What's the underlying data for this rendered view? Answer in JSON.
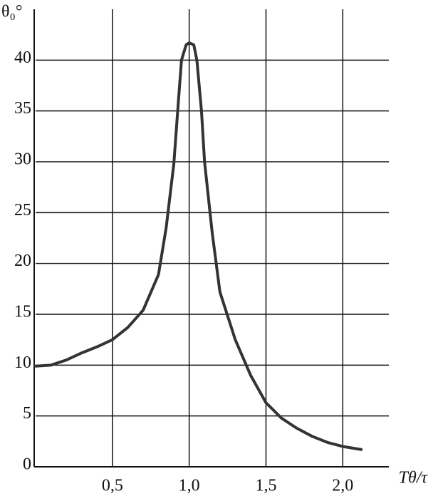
{
  "chart_data": {
    "type": "line",
    "ylabel": "θ₀°",
    "xlabel": "Tθ/τ",
    "x": [
      0,
      0.1,
      0.2,
      0.3,
      0.4,
      0.5,
      0.6,
      0.7,
      0.8,
      0.85,
      0.9,
      0.93,
      0.95,
      0.98,
      1.0,
      1.03,
      1.05,
      1.08,
      1.1,
      1.15,
      1.2,
      1.3,
      1.4,
      1.5,
      1.6,
      1.7,
      1.8,
      1.9,
      2.0,
      2.12
    ],
    "series": [
      {
        "color": "#333333",
        "values": [
          9.9,
          10.0,
          10.5,
          11.2,
          11.8,
          12.5,
          13.7,
          15.4,
          18.9,
          23.5,
          29.8,
          36,
          40,
          41.5,
          41.7,
          41.5,
          40,
          35,
          30,
          23,
          17.2,
          12.5,
          9,
          6.3,
          4.8,
          3.8,
          3.0,
          2.4,
          2.0,
          1.7
        ]
      }
    ],
    "xlim": [
      0,
      2.3
    ],
    "ylim": [
      0,
      45
    ],
    "xticks": [
      {
        "value": 0.5,
        "label": "0,5"
      },
      {
        "value": 1.0,
        "label": "1,0"
      },
      {
        "value": 1.5,
        "label": "1,5"
      },
      {
        "value": 2.0,
        "label": "2,0"
      }
    ],
    "yticks": [
      0,
      5,
      10,
      15,
      20,
      25,
      30,
      35,
      40
    ],
    "grid": true
  }
}
